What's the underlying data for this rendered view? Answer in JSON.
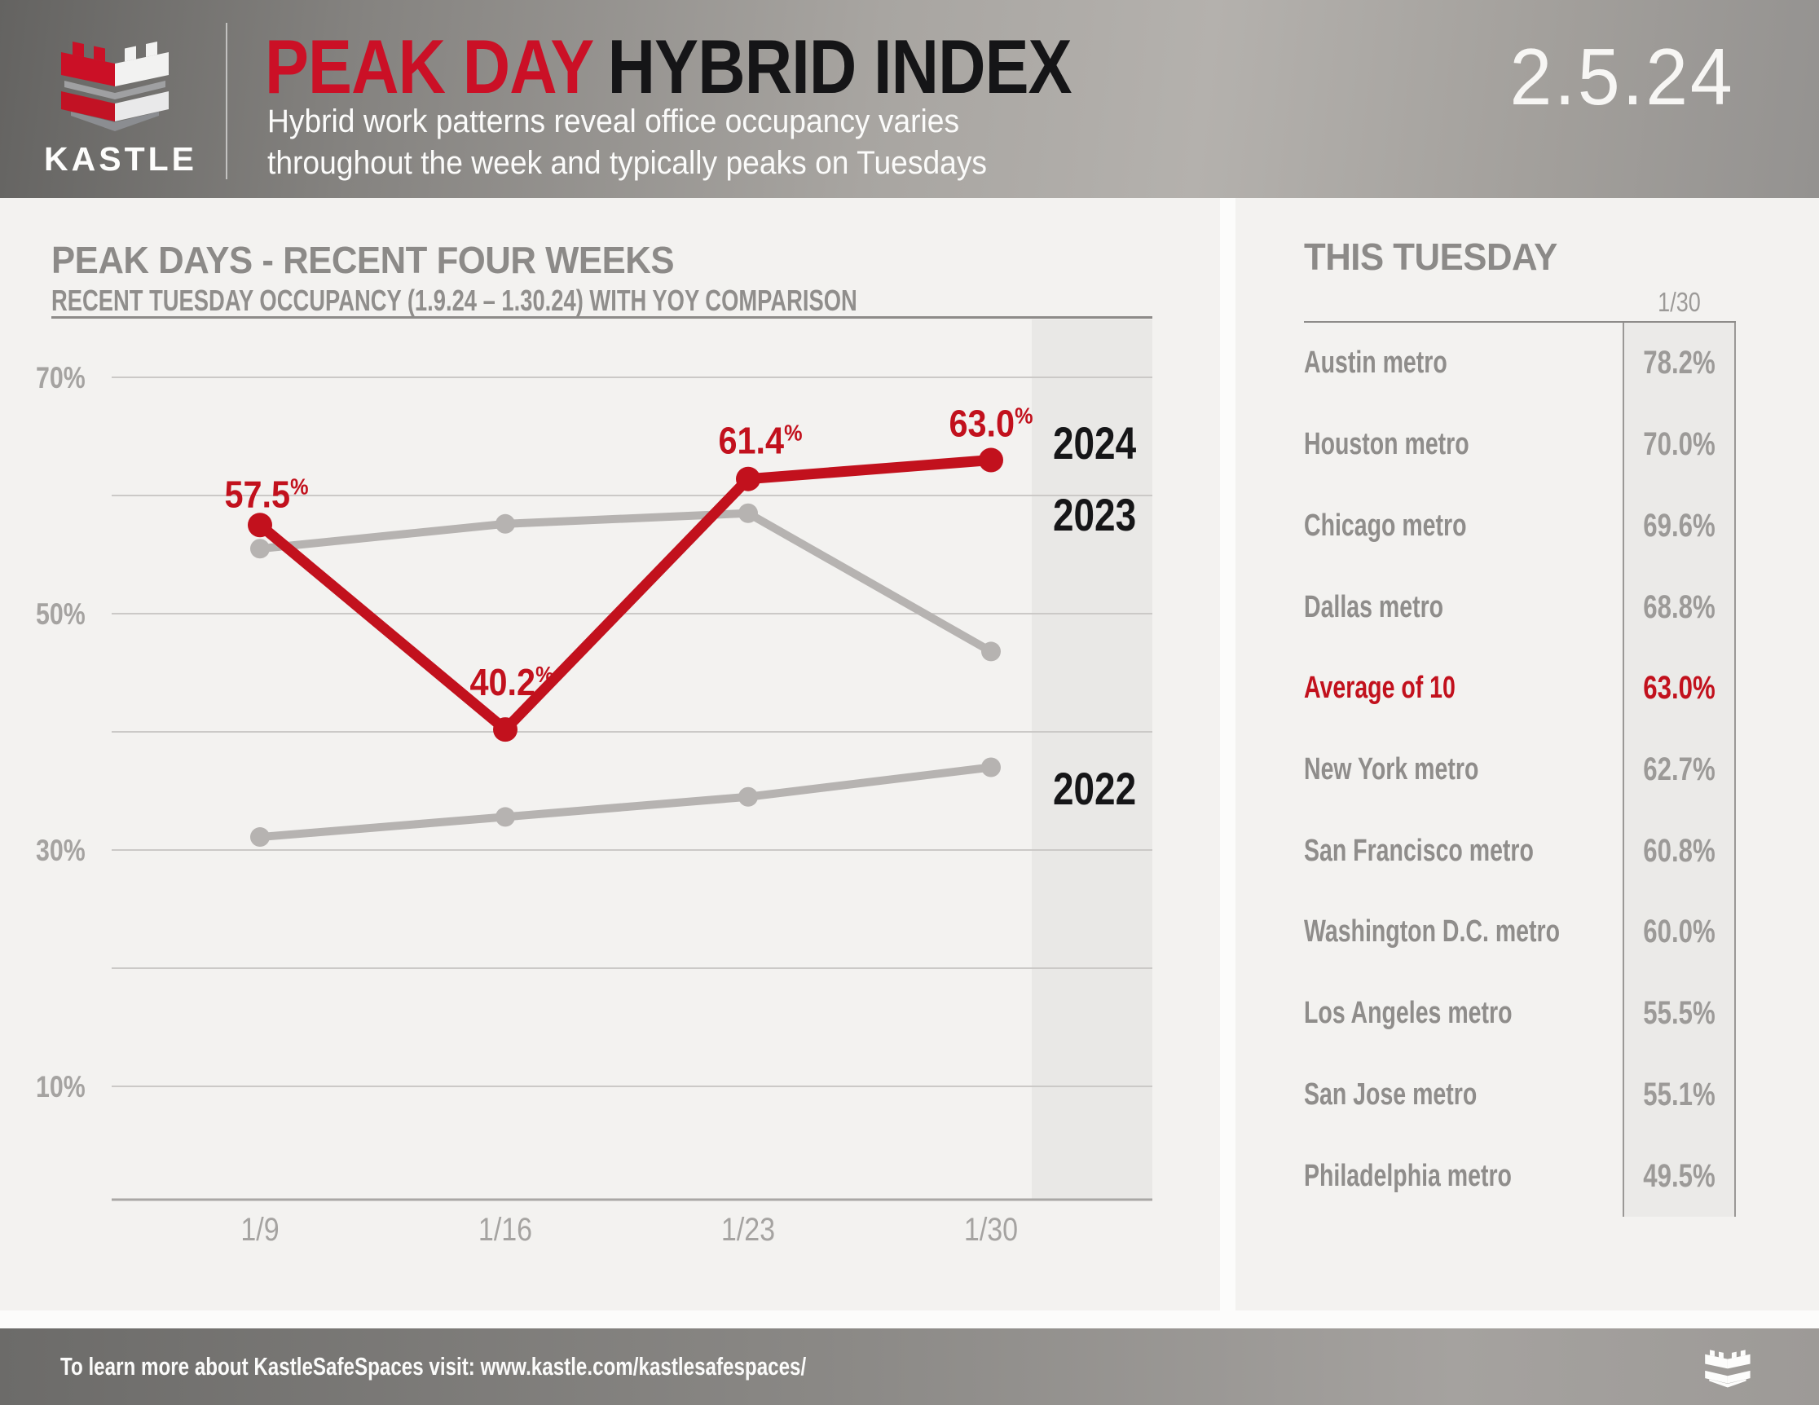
{
  "header": {
    "brand": "KASTLE",
    "title_red": "PEAK DAY",
    "title_rest": "HYBRID INDEX",
    "subtitle_line1": "Hybrid work patterns reveal office occupancy varies",
    "subtitle_line2": "throughout the week and typically peaks on Tuesdays",
    "date": "2.5.24"
  },
  "colors": {
    "brand_red": "#cb1026",
    "chart_red": "#c2111d",
    "gray_line": "#b6b3b1",
    "near_black": "#161618",
    "heading_gray": "#8c8a88",
    "tick_gray": "#a5a3a1",
    "grid": "#cbc9c7",
    "axis": "#a9a7a5",
    "band": "#e9e8e6"
  },
  "chart": {
    "title": "PEAK DAYS - RECENT FOUR WEEKS",
    "subtitle": "RECENT TUESDAY OCCUPANCY (1.9.24 – 1.30.24) WITH YOY COMPARISON"
  },
  "chart_data": {
    "type": "line",
    "title": "PEAK DAYS - RECENT FOUR WEEKS",
    "subtitle": "RECENT TUESDAY OCCUPANCY (1.9.24 – 1.30.24) WITH YOY COMPARISON",
    "categories": [
      "1/9",
      "1/16",
      "1/23",
      "1/30"
    ],
    "series": [
      {
        "name": "2024",
        "values": [
          57.5,
          40.2,
          61.4,
          63.0
        ],
        "color_key": "chart_red",
        "point_labels": [
          "57.5",
          "40.2",
          "61.4",
          "63.0"
        ],
        "label_suffix": "%"
      },
      {
        "name": "2023",
        "values": [
          55.5,
          57.6,
          58.5,
          46.8
        ],
        "color_key": "gray_line"
      },
      {
        "name": "2022",
        "values": [
          31.1,
          32.8,
          34.5,
          37.0
        ],
        "color_key": "gray_line"
      }
    ],
    "ylim": [
      0,
      75
    ],
    "yticks_labeled": [
      70,
      50,
      30,
      10
    ],
    "gridlines": [
      70,
      60,
      50,
      40,
      30,
      20,
      10
    ],
    "tick_suffix": "%",
    "grid": true,
    "legend_position": "right-inline-year-labels",
    "highlight_band": "last-interval"
  },
  "panel": {
    "title": "THIS TUESDAY",
    "col_header": "1/30",
    "rows": [
      {
        "label": "Austin metro",
        "value": "78.2%",
        "highlight": false
      },
      {
        "label": "Houston metro",
        "value": "70.0%",
        "highlight": false
      },
      {
        "label": "Chicago metro",
        "value": "69.6%",
        "highlight": false
      },
      {
        "label": "Dallas metro",
        "value": "68.8%",
        "highlight": false
      },
      {
        "label": "Average of 10",
        "value": "63.0%",
        "highlight": true
      },
      {
        "label": "New York metro",
        "value": "62.7%",
        "highlight": false
      },
      {
        "label": "San Francisco metro",
        "value": "60.8%",
        "highlight": false
      },
      {
        "label": "Washington D.C. metro",
        "value": "60.0%",
        "highlight": false
      },
      {
        "label": "Los Angeles metro",
        "value": "55.5%",
        "highlight": false
      },
      {
        "label": "San Jose metro",
        "value": "55.1%",
        "highlight": false
      },
      {
        "label": "Philadelphia metro",
        "value": "49.5%",
        "highlight": false
      }
    ]
  },
  "footer": {
    "text": "To learn more about KastleSafeSpaces visit: www.kastle.com/kastlesafespaces/"
  }
}
